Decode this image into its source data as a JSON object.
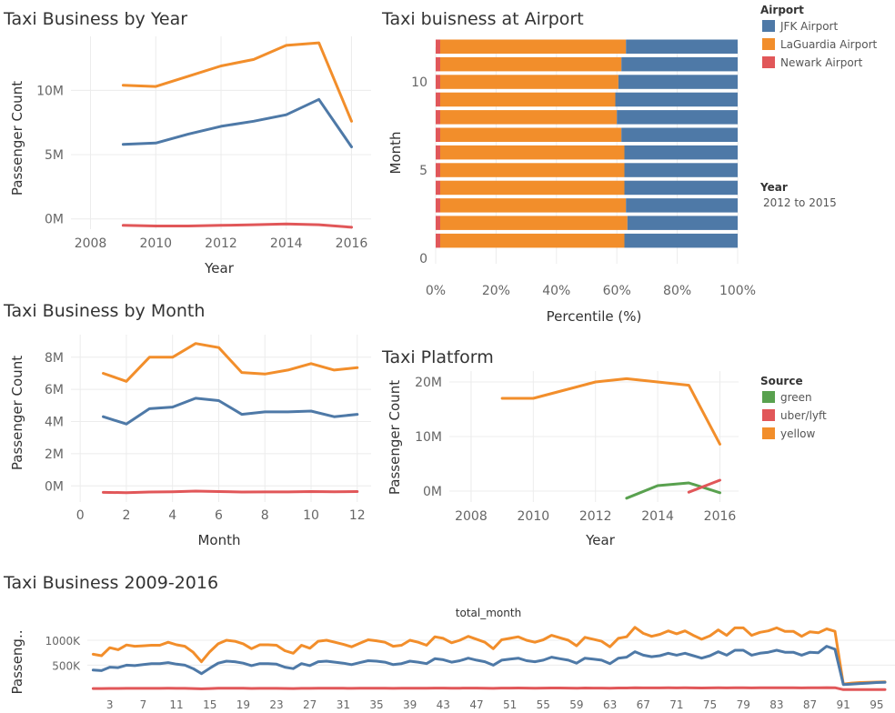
{
  "colors": {
    "jfk": "#4e79a7",
    "laguardia": "#f28e2b",
    "newark": "#e15759",
    "green": "#59a14f",
    "uber_lyft": "#e15759",
    "yellow": "#f28e2b",
    "grid": "#ececec"
  },
  "chart_data": [
    {
      "id": "by_year",
      "type": "line",
      "title": "Taxi Business by Year",
      "xlabel": "Year",
      "ylabel": "Passenger Count",
      "xticks": [
        "2008",
        "2010",
        "2012",
        "2014",
        "2016"
      ],
      "yticks": [
        "0M",
        "5M",
        "10M"
      ],
      "xlim": [
        2007.4,
        2016.6
      ],
      "ylim": [
        -0.8,
        14.2
      ],
      "x": [
        2009,
        2010,
        2011,
        2012,
        2013,
        2014,
        2015,
        2016
      ],
      "series": [
        {
          "color_key": "laguardia",
          "values": [
            10.4,
            10.3,
            11.1,
            11.9,
            12.4,
            13.5,
            13.7,
            7.6
          ]
        },
        {
          "color_key": "jfk",
          "values": [
            5.8,
            5.9,
            6.6,
            7.2,
            7.6,
            8.1,
            9.3,
            5.6
          ]
        },
        {
          "color_key": "newark",
          "values": [
            -0.5,
            -0.55,
            -0.55,
            -0.5,
            -0.45,
            -0.4,
            -0.45,
            -0.65
          ]
        }
      ]
    },
    {
      "id": "airport",
      "type": "bar",
      "orientation": "horizontal-stacked-percent",
      "title": "Taxi buisness at Airport",
      "xlabel": "Percentile (%)",
      "ylabel": "Month",
      "xticks": [
        "0%",
        "20%",
        "40%",
        "60%",
        "80%",
        "100%"
      ],
      "yticks": [
        "0",
        "5",
        "10"
      ],
      "categories": [
        1,
        2,
        3,
        4,
        5,
        6,
        7,
        8,
        9,
        10,
        11,
        12
      ],
      "series": [
        {
          "name": "Newark Airport",
          "color_key": "newark",
          "values": [
            1.5,
            1.5,
            1.5,
            1.5,
            1.5,
            1.5,
            1.5,
            1.5,
            1.5,
            1.5,
            1.5,
            1.5
          ]
        },
        {
          "name": "LaGuardia Airport",
          "color_key": "laguardia",
          "values": [
            61,
            62,
            61.5,
            61,
            61,
            61,
            60,
            58.5,
            58,
            59,
            60,
            61.5
          ]
        },
        {
          "name": "JFK Airport",
          "color_key": "jfk",
          "values": [
            37.5,
            36.5,
            37,
            37.5,
            37.5,
            37.5,
            38.5,
            40,
            40.5,
            39.5,
            38.5,
            37
          ]
        }
      ]
    },
    {
      "id": "by_month",
      "type": "line",
      "title": "Taxi Business by Month",
      "xlabel": "Month",
      "ylabel": "Passenger Count",
      "xticks": [
        "0",
        "2",
        "4",
        "6",
        "8",
        "10",
        "12"
      ],
      "yticks": [
        "0M",
        "2M",
        "4M",
        "6M",
        "8M"
      ],
      "xlim": [
        -0.4,
        12.6
      ],
      "ylim": [
        -1.0,
        9.4
      ],
      "x": [
        1,
        2,
        3,
        4,
        5,
        6,
        7,
        8,
        9,
        10,
        11,
        12
      ],
      "series": [
        {
          "color_key": "laguardia",
          "values": [
            7.0,
            6.5,
            8.0,
            8.0,
            8.85,
            8.6,
            7.05,
            6.95,
            7.2,
            7.6,
            7.2,
            7.35
          ]
        },
        {
          "color_key": "jfk",
          "values": [
            4.3,
            3.85,
            4.8,
            4.9,
            5.45,
            5.3,
            4.45,
            4.6,
            4.6,
            4.65,
            4.3,
            4.45
          ]
        },
        {
          "color_key": "newark",
          "values": [
            -0.4,
            -0.42,
            -0.38,
            -0.36,
            -0.32,
            -0.35,
            -0.38,
            -0.37,
            -0.37,
            -0.35,
            -0.36,
            -0.35
          ]
        }
      ]
    },
    {
      "id": "platform",
      "type": "line",
      "title": "Taxi Platform",
      "xlabel": "Year",
      "ylabel": "Passenger Count",
      "xticks": [
        "2008",
        "2010",
        "2012",
        "2014",
        "2016"
      ],
      "yticks": [
        "0M",
        "10M",
        "20M"
      ],
      "xlim": [
        2007.3,
        2016.6
      ],
      "ylim": [
        -2.0,
        22.0
      ],
      "x": [
        2009,
        2010,
        2011,
        2012,
        2013,
        2014,
        2015,
        2016
      ],
      "series": [
        {
          "name": "yellow",
          "color_key": "yellow",
          "values": [
            17.0,
            17.0,
            18.5,
            20.0,
            20.6,
            20.0,
            19.4,
            8.6
          ]
        },
        {
          "name": "green",
          "color_key": "green",
          "values": [
            null,
            null,
            null,
            null,
            -1.3,
            1.0,
            1.5,
            -0.3
          ]
        },
        {
          "name": "uber/lyft",
          "color_key": "uber_lyft",
          "values": [
            null,
            null,
            null,
            null,
            null,
            null,
            -0.2,
            2.0
          ]
        }
      ]
    },
    {
      "id": "total",
      "type": "line",
      "title": "Taxi Business 2009-2016",
      "subtitle": "total_month",
      "ylabel": "Passeng..",
      "xticks": [
        "3",
        "7",
        "11",
        "15",
        "19",
        "23",
        "27",
        "31",
        "35",
        "39",
        "43",
        "47",
        "51",
        "55",
        "59",
        "63",
        "67",
        "71",
        "75",
        "79",
        "83",
        "87",
        "91",
        "95"
      ],
      "yticks": [
        "500K",
        "1000K"
      ],
      "xlim": [
        0.3,
        97.2
      ],
      "ylim": [
        -60,
        1330
      ],
      "x_start": 1,
      "series": [
        {
          "color_key": "laguardia",
          "values": [
            720,
            690,
            850,
            810,
            905,
            880,
            890,
            900,
            900,
            960,
            910,
            880,
            760,
            570,
            770,
            930,
            1000,
            980,
            930,
            830,
            910,
            910,
            900,
            790,
            740,
            900,
            840,
            980,
            1000,
            960,
            920,
            870,
            940,
            1010,
            990,
            960,
            880,
            900,
            1000,
            960,
            900,
            1070,
            1040,
            950,
            1000,
            1080,
            1020,
            960,
            830,
            1010,
            1040,
            1070,
            1000,
            960,
            1010,
            1100,
            1050,
            1000,
            890,
            1060,
            1020,
            980,
            870,
            1040,
            1070,
            1260,
            1140,
            1080,
            1120,
            1190,
            1130,
            1190,
            1100,
            1020,
            1090,
            1210,
            1100,
            1250,
            1250,
            1100,
            1160,
            1190,
            1250,
            1180,
            1180,
            1080,
            1170,
            1150,
            1230,
            1180,
            120,
            140,
            150,
            155,
            160,
            165
          ]
        },
        {
          "color_key": "jfk",
          "values": [
            400,
            390,
            460,
            450,
            500,
            490,
            510,
            530,
            530,
            550,
            520,
            500,
            430,
            330,
            440,
            540,
            580,
            570,
            540,
            490,
            530,
            530,
            520,
            460,
            430,
            530,
            490,
            570,
            580,
            560,
            540,
            510,
            550,
            590,
            580,
            560,
            510,
            530,
            580,
            560,
            530,
            630,
            610,
            560,
            590,
            640,
            600,
            570,
            500,
            600,
            620,
            640,
            590,
            570,
            600,
            660,
            630,
            600,
            540,
            640,
            620,
            600,
            530,
            640,
            660,
            770,
            700,
            670,
            690,
            740,
            700,
            740,
            690,
            640,
            690,
            770,
            700,
            800,
            800,
            700,
            740,
            760,
            800,
            760,
            760,
            700,
            760,
            750,
            880,
            820,
            110,
            120,
            130,
            140,
            150,
            155
          ]
        },
        {
          "color_key": "newark",
          "values": [
            30,
            30,
            32,
            32,
            33,
            33,
            34,
            34,
            34,
            35,
            34,
            33,
            30,
            25,
            30,
            35,
            36,
            36,
            35,
            32,
            34,
            34,
            34,
            31,
            30,
            34,
            33,
            36,
            37,
            36,
            35,
            34,
            35,
            37,
            37,
            36,
            34,
            35,
            37,
            36,
            35,
            39,
            38,
            36,
            37,
            39,
            38,
            37,
            34,
            38,
            39,
            40,
            38,
            37,
            38,
            41,
            40,
            38,
            36,
            40,
            39,
            38,
            35,
            40,
            41,
            45,
            43,
            42,
            43,
            44,
            43,
            44,
            43,
            41,
            43,
            45,
            43,
            46,
            46,
            43,
            44,
            45,
            46,
            45,
            45,
            43,
            45,
            45,
            47,
            46,
            8,
            8,
            8,
            8,
            8,
            8
          ]
        }
      ]
    }
  ],
  "legends": {
    "airport": {
      "title": "Airport",
      "items": [
        {
          "label": "JFK Airport",
          "color_key": "jfk"
        },
        {
          "label": "LaGuardia Airport",
          "color_key": "laguardia"
        },
        {
          "label": "Newark Airport",
          "color_key": "newark"
        }
      ]
    },
    "source": {
      "title": "Source",
      "items": [
        {
          "label": "green",
          "color_key": "green"
        },
        {
          "label": "uber/lyft",
          "color_key": "uber_lyft"
        },
        {
          "label": "yellow",
          "color_key": "yellow"
        }
      ]
    },
    "year_filter": {
      "title": "Year",
      "value": "2012 to 2015"
    }
  }
}
